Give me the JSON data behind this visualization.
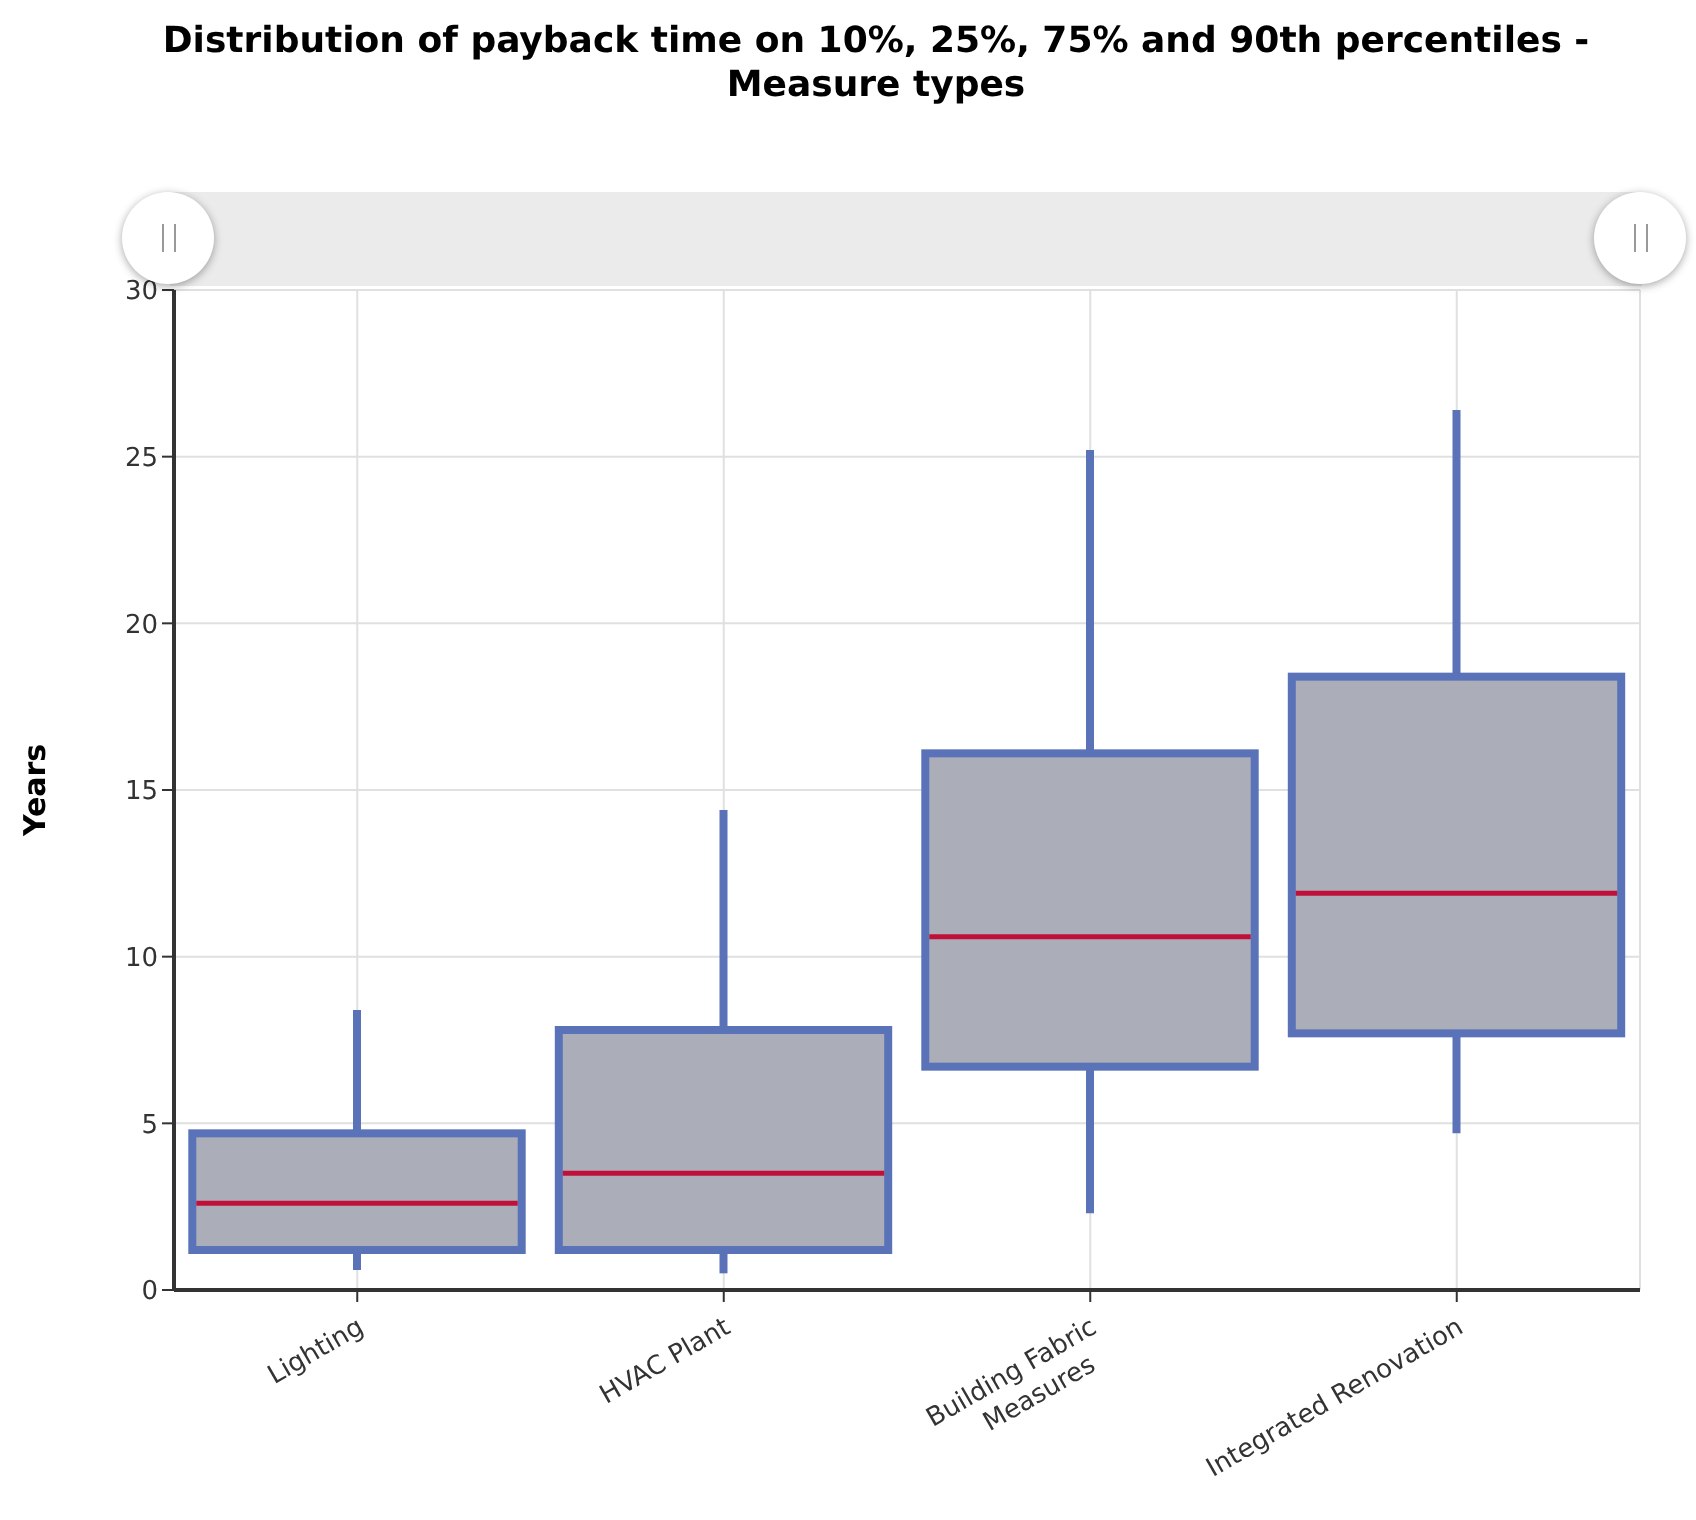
{
  "chart_data": {
    "type": "box",
    "title": "Distribution of payback time on 10%, 25%, 75% and 90th percentiles - Measure types",
    "ylabel": "Years",
    "categories": [
      "Lighting",
      "HVAC Plant",
      "Building Fabric Measures",
      "Integrated Renovation"
    ],
    "color": "#5a72b8",
    "boxes": [
      {
        "low": 0.6,
        "q1": 1.2,
        "median": 2.6,
        "q3": 4.7,
        "high": 8.4
      },
      {
        "low": 0.5,
        "q1": 1.2,
        "median": 3.5,
        "q3": 7.8,
        "high": 14.4
      },
      {
        "low": 2.3,
        "q1": 6.7,
        "median": 10.6,
        "q3": 16.1,
        "high": 25.2
      },
      {
        "low": 4.7,
        "q1": 7.7,
        "median": 11.9,
        "q3": 18.4,
        "high": 26.4
      }
    ],
    "ylim": [
      0,
      30
    ],
    "yticks": [
      0,
      5,
      10,
      15,
      20,
      25,
      30
    ],
    "grid": true
  }
}
